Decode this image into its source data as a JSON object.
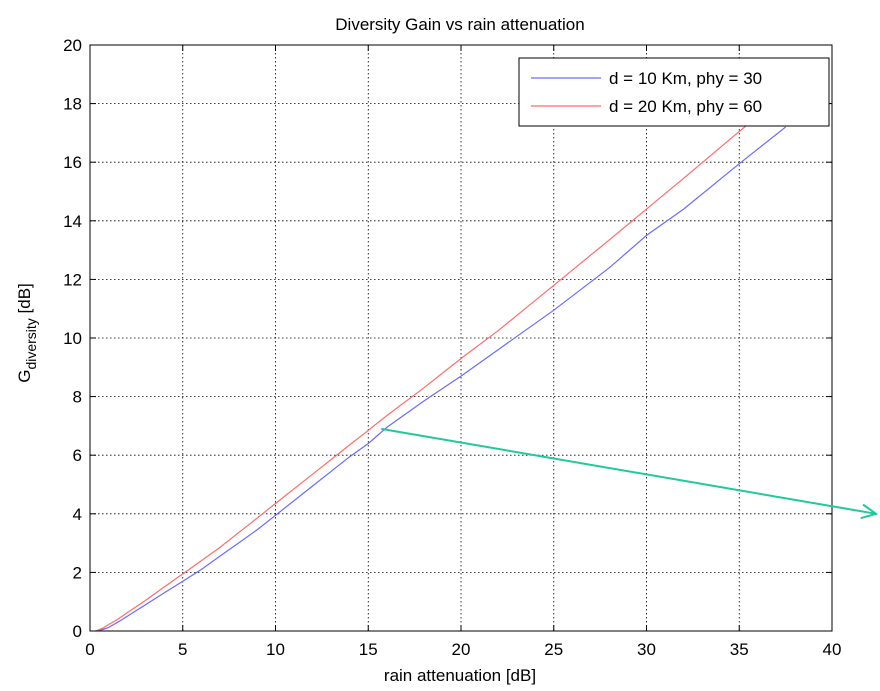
{
  "chart_data": {
    "type": "line",
    "title": "Diversity Gain vs rain attenuation",
    "xlabel": "rain attenuation [dB]",
    "ylabel": {
      "main": "G",
      "subscript": "diversity",
      "suffix": " [dB]"
    },
    "xlim": [
      0,
      40
    ],
    "ylim": [
      0,
      20
    ],
    "xticks": [
      0,
      5,
      10,
      15,
      20,
      25,
      30,
      35,
      40
    ],
    "yticks": [
      0,
      2,
      4,
      6,
      8,
      10,
      12,
      14,
      16,
      18,
      20
    ],
    "grid": true,
    "legend_position": "top-right",
    "series": [
      {
        "name": "d = 10 Km, phy = 30",
        "color": "#6b6bff",
        "x": [
          0.3,
          0.7,
          1,
          1.5,
          2,
          3,
          4,
          5,
          6,
          7,
          8,
          9,
          10,
          12,
          14,
          15,
          16,
          18,
          20,
          22,
          25,
          28,
          30,
          32,
          35,
          37.5
        ],
        "y": [
          0.0,
          0.05,
          0.12,
          0.3,
          0.5,
          0.9,
          1.3,
          1.7,
          2.1,
          2.55,
          3.0,
          3.45,
          3.95,
          4.95,
          5.95,
          6.4,
          6.95,
          7.85,
          8.7,
          9.6,
          10.95,
          12.4,
          13.5,
          14.4,
          15.95,
          17.2
        ]
      },
      {
        "name": "d = 20 Km, phy = 60",
        "color": "#ff6b6b",
        "x": [
          0.3,
          0.7,
          1,
          1.5,
          2,
          3,
          4,
          5,
          6,
          7,
          8,
          9,
          10,
          12,
          14,
          15,
          16,
          18,
          20,
          22,
          25,
          28,
          30,
          32,
          35,
          37.2
        ],
        "y": [
          0.0,
          0.1,
          0.22,
          0.4,
          0.62,
          1.05,
          1.5,
          1.95,
          2.4,
          2.85,
          3.35,
          3.85,
          4.35,
          5.35,
          6.35,
          6.85,
          7.35,
          8.3,
          9.3,
          10.25,
          11.8,
          13.35,
          14.4,
          15.45,
          17.05,
          18.2
        ]
      }
    ]
  },
  "annotation_arrow": {
    "color": "#1fc99a",
    "from": [
      15.7,
      6.9
    ],
    "to": [
      42.8,
      4.0
    ]
  }
}
